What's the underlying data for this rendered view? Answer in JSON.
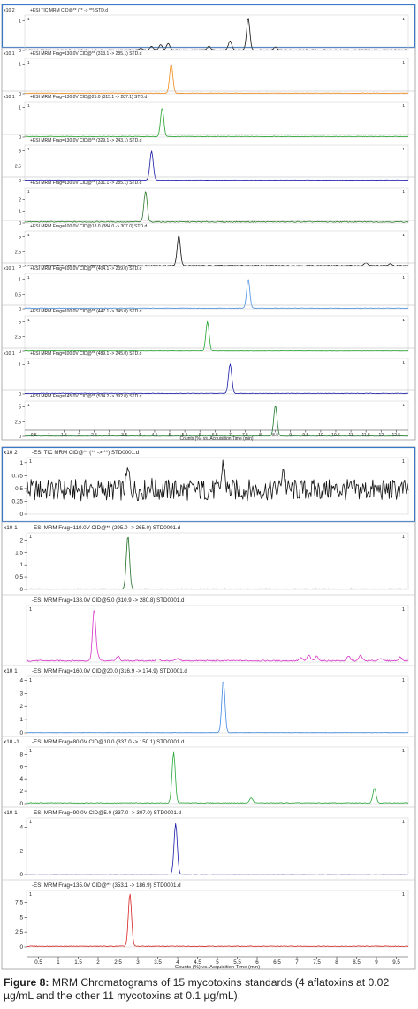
{
  "caption": {
    "label": "Figure 8:",
    "text": "MRM Chromatograms of 15 mycotoxins standards (4 aflatoxins at 0.02 µg/mL and the other 11 mycotoxins at 0.1 µg/mL)."
  },
  "chart_data": [
    {
      "type": "line",
      "name": "positive-mode",
      "xlabel": "Counts (%) vs. Acquisition Time (min)",
      "xlim": [
        0.2,
        12.9
      ],
      "xticks": [
        0.5,
        1,
        1.5,
        2,
        2.5,
        3,
        3.5,
        4,
        4.5,
        5,
        5.5,
        6,
        6.5,
        7,
        7.5,
        8,
        8.5,
        9,
        9.5,
        10,
        10.5,
        11,
        11.5,
        12,
        12.5
      ],
      "panels": [
        {
          "title": "+ESI TIC MRM CID@** (** -> **) STD.d",
          "exp": "x10 2",
          "color": "#111111",
          "ylim": [
            0,
            1.2
          ],
          "yticks": [
            0,
            1
          ],
          "baseline": 0.02,
          "corner": "1",
          "peaks": [
            [
              4.05,
              0.05
            ],
            [
              4.4,
              0.12
            ],
            [
              4.7,
              0.18
            ],
            [
              4.95,
              0.22
            ],
            [
              6.3,
              0.12
            ],
            [
              7.0,
              0.3
            ],
            [
              7.6,
              1.08
            ],
            [
              8.5,
              0.1
            ]
          ]
        },
        {
          "title": "+ESI MRM Frag=130.0V CID@** (313.1 -> 285.1) STD.d",
          "exp": "x10 1",
          "color": "#f28a1a",
          "ylim": [
            0,
            1.2
          ],
          "yticks": [
            0,
            1
          ],
          "baseline": 0.02,
          "corner": "1",
          "peaks": [
            [
              5.05,
              1.0
            ]
          ]
        },
        {
          "title": "+ESI MRM Frag=130.0V CID@25.0 (315.1 -> 287.1) STD.d",
          "exp": "x10 1",
          "color": "#22a32a",
          "ylim": [
            0,
            1.2
          ],
          "yticks": [
            0,
            1
          ],
          "baseline": 0.02,
          "corner": "1",
          "peaks": [
            [
              4.75,
              0.98
            ]
          ]
        },
        {
          "title": "+ESI MRM Frag=130.0V CID@** (329.1 -> 243.1) STD.d",
          "exp": "",
          "color": "#1a1aa8",
          "ylim": [
            0,
            6
          ],
          "yticks": [
            0,
            2.5,
            5
          ],
          "baseline": 0.08,
          "corner": "1",
          "peaks": [
            [
              4.4,
              4.9
            ]
          ]
        },
        {
          "title": "+ESI MRM Frag=130.0V CID@** (331.1 -> 285.1) STD.d",
          "exp": "",
          "color": "#2c7a2c",
          "ylim": [
            0,
            3
          ],
          "yticks": [
            0,
            1,
            2
          ],
          "baseline": 0.1,
          "corner": "1",
          "peaks": [
            [
              4.2,
              2.6
            ]
          ]
        },
        {
          "title": "+ESI MRM Frag=100.0V CID@18.0 (384.0 -> 307.0) STD.d",
          "exp": "",
          "color": "#111111",
          "ylim": [
            0,
            6
          ],
          "yticks": [
            0,
            2.5,
            5
          ],
          "baseline": 0.15,
          "corner": "1",
          "peaks": [
            [
              5.3,
              5.1
            ],
            [
              11.5,
              0.5
            ],
            [
              12.3,
              0.3
            ]
          ]
        },
        {
          "title": "+ESI MRM Frag=100.0V CID@** (404.1 -> 239.0) STD.d",
          "exp": "x10 1",
          "color": "#4a8fe0",
          "ylim": [
            0,
            1.2
          ],
          "yticks": [
            0,
            0.5,
            1
          ],
          "baseline": 0.02,
          "corner": "1",
          "peaks": [
            [
              7.6,
              0.98
            ]
          ]
        },
        {
          "title": "+ESI MRM Frag=100.0V CID@** (447.1 -> 345.0) STD.d",
          "exp": "",
          "color": "#22a32a",
          "ylim": [
            0,
            6
          ],
          "yticks": [
            0,
            2.5,
            5
          ],
          "baseline": 0.05,
          "corner": "1",
          "peaks": [
            [
              6.25,
              5.0
            ]
          ]
        },
        {
          "title": "+ESI MRM Frag=100.0V CID@** (489.1 -> 245.0) STD.d",
          "exp": "x10 1",
          "color": "#1a1aa8",
          "ylim": [
            0,
            1.2
          ],
          "yticks": [
            0,
            1
          ],
          "baseline": 0.02,
          "corner": "1",
          "peaks": [
            [
              7.0,
              1.0
            ]
          ]
        },
        {
          "title": "+ESI MRM Frag=145.0V CID@** (534.2 -> 392.0) STD.d",
          "exp": "",
          "color": "#1e7a2e",
          "ylim": [
            0,
            6
          ],
          "yticks": [
            0,
            2.5,
            5
          ],
          "baseline": 0.05,
          "corner": "1",
          "peaks": [
            [
              8.5,
              5.2
            ]
          ]
        }
      ]
    },
    {
      "type": "line",
      "name": "negative-mode",
      "xlabel": "Counts (%) vs. Acquisition Time (min)",
      "xlim": [
        0.2,
        9.8
      ],
      "xticks": [
        0.5,
        1,
        1.5,
        2,
        2.5,
        3,
        3.5,
        4,
        4.5,
        5,
        5.5,
        6,
        6.5,
        7,
        7.5,
        8,
        8.5,
        9,
        9.5
      ],
      "panels": [
        {
          "title": "-ESI TIC MRM CID@** (** -> **) STD0001.d",
          "exp": "x10 2",
          "color": "#111111",
          "ylim": [
            0,
            1.1
          ],
          "yticks": [
            0,
            0.25,
            0.5,
            0.75,
            1
          ],
          "baseline": 0.47,
          "corner": "1",
          "peaks": [
            [
              2.75,
              0.35
            ],
            [
              3.3,
              0.12
            ],
            [
              5.15,
              0.5
            ],
            [
              6.65,
              0.42
            ]
          ]
        },
        {
          "title": "-ESI MRM Frag=110.0V CID@** (295.0 -> 265.0) STD0001.d",
          "exp": "x10 1",
          "color": "#1e6e23",
          "ylim": [
            0,
            2.3
          ],
          "yticks": [
            0,
            0.5,
            1,
            1.5,
            2
          ],
          "baseline": 0.02,
          "corner": "1",
          "peaks": [
            [
              2.75,
              2.15
            ]
          ]
        },
        {
          "title": "-ESI MRM Frag=138.0V CID@5.0 (310.9 -> 280.8) STD0001.d",
          "exp": "",
          "color": "#d632c8",
          "ylim": [
            0,
            1.25
          ],
          "yticks": [],
          "baseline": 0.03,
          "corner": "1",
          "peaks": [
            [
              1.9,
              1.12
            ],
            [
              2.0,
              0.08
            ],
            [
              2.5,
              0.1
            ],
            [
              3.5,
              0.04
            ],
            [
              4.0,
              0.04
            ],
            [
              7.1,
              0.06
            ],
            [
              7.3,
              0.12
            ],
            [
              7.5,
              0.1
            ],
            [
              8.3,
              0.1
            ],
            [
              8.6,
              0.12
            ],
            [
              9.1,
              0.06
            ],
            [
              9.6,
              0.08
            ]
          ]
        },
        {
          "title": "-ESI MRM Frag=160.0V CID@20.0 (316.9 -> 174.9) STD0001.d",
          "exp": "x10 1",
          "color": "#3f86e0",
          "ylim": [
            0,
            4.3
          ],
          "yticks": [
            0,
            1,
            2,
            3,
            4
          ],
          "baseline": 0.02,
          "corner": "1",
          "peaks": [
            [
              5.15,
              4.0
            ]
          ]
        },
        {
          "title": "-ESI MRM Frag=80.0V CID@10.0 (337.0 -> 150.1) STD0001.d",
          "exp": "x10 -1",
          "color": "#2aa83a",
          "ylim": [
            0,
            9.2
          ],
          "yticks": [
            0,
            2,
            4,
            6,
            8
          ],
          "baseline": 0.12,
          "corner": "1",
          "peaks": [
            [
              3.9,
              8.2
            ],
            [
              5.85,
              0.8
            ],
            [
              8.95,
              2.4
            ]
          ]
        },
        {
          "title": "-ESI MRM Frag=90.0V CID@5.0 (337.0 -> 307.0) STD0001.d",
          "exp": "x10 1",
          "color": "#1a1aa8",
          "ylim": [
            0,
            4.8
          ],
          "yticks": [
            0,
            2,
            4
          ],
          "baseline": 0.02,
          "corner": "1",
          "peaks": [
            [
              3.95,
              4.3
            ]
          ]
        },
        {
          "title": "-ESI MRM Frag=135.0V CID@** (353.1 -> 186.9) STD0001.d",
          "exp": "",
          "color": "#d82222",
          "ylim": [
            0,
            9.5
          ],
          "yticks": [
            0,
            2.5,
            5,
            7.5
          ],
          "baseline": 0.12,
          "corner": "1",
          "peaks": [
            [
              2.8,
              8.8
            ]
          ]
        }
      ]
    }
  ]
}
